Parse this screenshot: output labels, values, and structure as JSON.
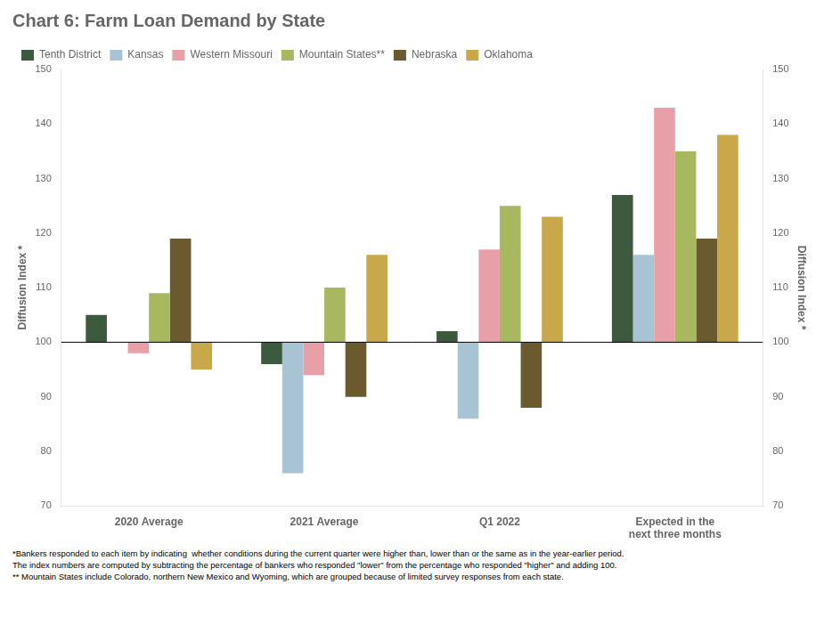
{
  "chart_data": {
    "type": "bar",
    "title": "Chart 6: Farm Loan Demand by State",
    "y_label": "Diffusion Index *",
    "y2_label": "Diffusion Index *",
    "categories": [
      "2020 Average",
      "2021 Average",
      "Q1 2022",
      "Expected in the\nnext three months"
    ],
    "series": [
      {
        "name": "Tenth District",
        "color": "#3d5a3e",
        "values": [
          105,
          96,
          102,
          127
        ]
      },
      {
        "name": "Kansas",
        "color": "#a8c4d4",
        "values": [
          100,
          76,
          86,
          116
        ]
      },
      {
        "name": "Western Missouri",
        "color": "#e8a0a8",
        "values": [
          98,
          94,
          117,
          143
        ]
      },
      {
        "name": "Mountain States**",
        "color": "#a8b860",
        "values": [
          109,
          110,
          125,
          135
        ]
      },
      {
        "name": "Nebraska",
        "color": "#6b5a30",
        "values": [
          119,
          90,
          88,
          119
        ]
      },
      {
        "name": "Oklahoma",
        "color": "#c8a84a",
        "values": [
          95,
          116,
          123,
          138
        ]
      }
    ],
    "baseline": 100,
    "ylim": [
      70,
      150
    ],
    "yticks": [
      70,
      80,
      90,
      100,
      110,
      120,
      130,
      140,
      150
    ],
    "y2lim": [
      70,
      150
    ],
    "y2ticks": [
      70,
      80,
      90,
      100,
      110,
      120,
      130,
      140,
      150
    ],
    "legend": "upper left",
    "grid": false,
    "footnotes": [
      "*Bankers responded to each item by indicating  whether conditions during the current quarter were higher than, lower than or the same as in the year-earlier period.",
      "The index numbers are computed by subtracting the percentage of bankers who responded \"lower\" from the percentage who responded \"higher\" and adding 100.",
      "** Mountain States include Colorado, northern New Mexico and Wyoming, which are grouped because of limited survey responses from each state."
    ]
  }
}
